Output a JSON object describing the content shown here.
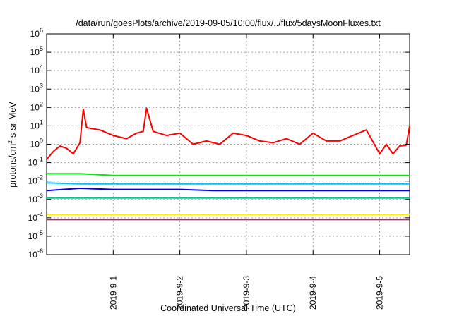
{
  "chart_data": {
    "type": "line",
    "title": "/data/run/goesPlots/archive/2019-09-05/10:00/flux/../flux/5daysMoonFluxes.txt",
    "xlabel": "Coordinated Universal Time (UTC)",
    "ylabel": {
      "pre": "protons/cm",
      "sup": "2",
      "post": "-s-sr-MeV"
    },
    "yscale": "log",
    "ylim_exp": [
      -6,
      6
    ],
    "y_ticks": [
      {
        "exp": -6,
        "label": "10",
        "sup": "-6"
      },
      {
        "exp": -5,
        "label": "10",
        "sup": "-5"
      },
      {
        "exp": -4,
        "label": "10",
        "sup": "-4"
      },
      {
        "exp": -3,
        "label": "10",
        "sup": "-3"
      },
      {
        "exp": -2,
        "label": "10",
        "sup": "-2"
      },
      {
        "exp": -1,
        "label": "10",
        "sup": "-1"
      },
      {
        "exp": 0,
        "label": "10",
        "sup": "0"
      },
      {
        "exp": 1,
        "label": "10",
        "sup": "1"
      },
      {
        "exp": 2,
        "label": "10",
        "sup": "2"
      },
      {
        "exp": 3,
        "label": "10",
        "sup": "3"
      },
      {
        "exp": 4,
        "label": "10",
        "sup": "4"
      },
      {
        "exp": 5,
        "label": "10",
        "sup": "5"
      },
      {
        "exp": 6,
        "label": "10",
        "sup": "6"
      }
    ],
    "xlim_days": [
      0,
      5.45
    ],
    "x_ticks": [
      {
        "day": 1,
        "label": "2019-9-1"
      },
      {
        "day": 2,
        "label": "2019-9-2"
      },
      {
        "day": 3,
        "label": "2019-9-3"
      },
      {
        "day": 4,
        "label": "2019-9-4"
      },
      {
        "day": 5,
        "label": "2019-9-5"
      }
    ],
    "grid": true,
    "legend": "none",
    "series": [
      {
        "color": "#ff0000",
        "x": [
          0,
          0.1,
          0.2,
          0.3,
          0.4,
          0.5,
          0.55,
          0.6,
          0.8,
          1.0,
          1.2,
          1.35,
          1.45,
          1.5,
          1.6,
          1.8,
          2.0,
          2.2,
          2.4,
          2.6,
          2.8,
          3.0,
          3.2,
          3.4,
          3.6,
          3.8,
          4.0,
          4.2,
          4.4,
          4.6,
          4.8,
          5.0,
          5.1,
          5.2,
          5.3,
          5.4,
          5.45
        ],
        "y": [
          0.15,
          0.4,
          0.8,
          0.6,
          0.3,
          1.2,
          80,
          8,
          6,
          3,
          2,
          4,
          5,
          90,
          5,
          3,
          4,
          1,
          1.5,
          1,
          4,
          3,
          1.5,
          1.2,
          2,
          1,
          4,
          1.5,
          1.5,
          3,
          6,
          0.3,
          1,
          0.3,
          0.8,
          0.9,
          10
        ]
      },
      {
        "color": "#00ee00",
        "x": [
          0,
          0.5,
          1,
          1.5,
          2,
          2.5,
          3,
          3.5,
          4,
          4.5,
          5,
          5.45
        ],
        "y": [
          0.025,
          0.025,
          0.02,
          0.02,
          0.02,
          0.02,
          0.02,
          0.02,
          0.02,
          0.02,
          0.02,
          0.02
        ]
      },
      {
        "color": "#00c0ff",
        "x": [
          0,
          0.5,
          1,
          1.5,
          2,
          2.5,
          3,
          3.5,
          4,
          4.5,
          5,
          5.45
        ],
        "y": [
          0.008,
          0.007,
          0.007,
          0.007,
          0.007,
          0.007,
          0.007,
          0.007,
          0.007,
          0.007,
          0.007,
          0.007
        ]
      },
      {
        "color": "#0000ee",
        "x": [
          0,
          0.5,
          1,
          1.5,
          2,
          2.5,
          3,
          3.5,
          4,
          4.5,
          5,
          5.45
        ],
        "y": [
          0.003,
          0.004,
          0.0035,
          0.0035,
          0.0035,
          0.003,
          0.003,
          0.003,
          0.003,
          0.003,
          0.003,
          0.003
        ]
      },
      {
        "color": "#00c8a0",
        "x": [
          0,
          0.5,
          1,
          1.5,
          2,
          2.5,
          3,
          3.5,
          4,
          4.5,
          5,
          5.45
        ],
        "y": [
          0.0012,
          0.0012,
          0.0012,
          0.0012,
          0.0012,
          0.0012,
          0.0012,
          0.0012,
          0.0012,
          0.0012,
          0.0012,
          0.0012
        ]
      },
      {
        "color": "#ffee00",
        "x": [
          0,
          0.5,
          1,
          1.5,
          2,
          2.5,
          3,
          3.5,
          4,
          4.5,
          5,
          5.45
        ],
        "y": [
          0.00015,
          0.00015,
          0.00015,
          0.00015,
          0.00015,
          0.00015,
          0.00015,
          0.00015,
          0.00015,
          0.00015,
          0.00015,
          0.00015
        ]
      },
      {
        "color": "#993366",
        "x": [
          0,
          0.5,
          1,
          1.5,
          2,
          2.5,
          3,
          3.5,
          4,
          4.5,
          5,
          5.45
        ],
        "y": [
          8e-05,
          8e-05,
          8e-05,
          8e-05,
          8e-05,
          8e-05,
          8e-05,
          8e-05,
          8e-05,
          8e-05,
          8e-05,
          8e-05
        ]
      }
    ]
  }
}
